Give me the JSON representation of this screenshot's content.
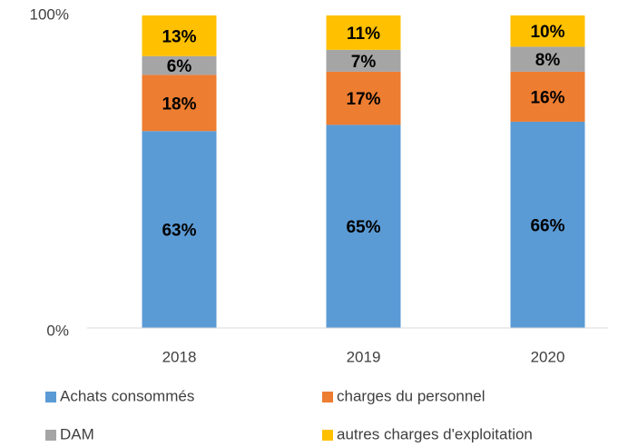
{
  "chart_data": {
    "type": "stacked_bar",
    "categories": [
      "2018",
      "2019",
      "2020"
    ],
    "series": [
      {
        "name": "Achats consommés",
        "color": "#5b9bd5",
        "values": [
          63,
          65,
          66
        ],
        "value_labels": [
          "63%",
          "65%",
          "66%"
        ]
      },
      {
        "name": "charges du personnel",
        "color": "#ed7d31",
        "values": [
          18,
          17,
          16
        ],
        "value_labels": [
          "18%",
          "17%",
          "16%"
        ]
      },
      {
        "name": "DAM",
        "color": "#a5a5a5",
        "values": [
          6,
          7,
          8
        ],
        "value_labels": [
          "6%",
          "7%",
          "8%"
        ]
      },
      {
        "name": "autres charges d'exploitation",
        "color": "#ffc000",
        "values": [
          13,
          11,
          10
        ],
        "value_labels": [
          "13%",
          "11%",
          "10%"
        ]
      }
    ],
    "ylim": [
      0,
      100
    ],
    "yticks": [
      {
        "value": 0,
        "label": "0%"
      },
      {
        "value": 100,
        "label": "100%"
      }
    ],
    "legend": "bottom"
  }
}
